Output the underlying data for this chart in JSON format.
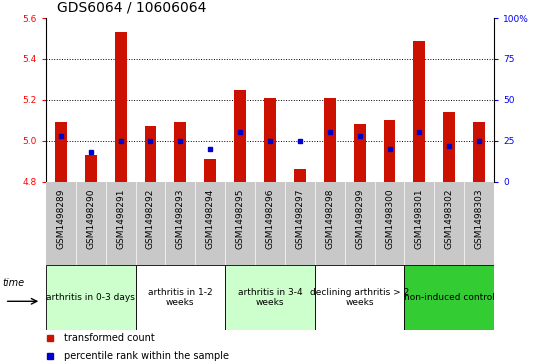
{
  "title": "GDS6064 / 10606064",
  "samples": [
    "GSM1498289",
    "GSM1498290",
    "GSM1498291",
    "GSM1498292",
    "GSM1498293",
    "GSM1498294",
    "GSM1498295",
    "GSM1498296",
    "GSM1498297",
    "GSM1498298",
    "GSM1498299",
    "GSM1498300",
    "GSM1498301",
    "GSM1498302",
    "GSM1498303"
  ],
  "transformed_count": [
    5.09,
    4.93,
    5.53,
    5.07,
    5.09,
    4.91,
    5.25,
    5.21,
    4.86,
    5.21,
    5.08,
    5.1,
    5.49,
    5.14,
    5.09
  ],
  "percentile_rank": [
    28,
    18,
    25,
    25,
    25,
    20,
    30,
    25,
    25,
    30,
    28,
    20,
    30,
    22,
    25
  ],
  "bar_bottom": 4.8,
  "ylim_left": [
    4.8,
    5.6
  ],
  "ylim_right": [
    0,
    100
  ],
  "yticks_left": [
    4.8,
    5.0,
    5.2,
    5.4,
    5.6
  ],
  "yticks_right": [
    0,
    25,
    50,
    75,
    100
  ],
  "bar_color": "#cc1100",
  "dot_color": "#0000cc",
  "groups": [
    {
      "label": "arthritis in 0-3 days",
      "start": 0,
      "end": 3,
      "color": "#ccffcc"
    },
    {
      "label": "arthritis in 1-2\nweeks",
      "start": 3,
      "end": 6,
      "color": "#ffffff"
    },
    {
      "label": "arthritis in 3-4\nweeks",
      "start": 6,
      "end": 9,
      "color": "#ccffcc"
    },
    {
      "label": "declining arthritis > 2\nweeks",
      "start": 9,
      "end": 12,
      "color": "#ffffff"
    },
    {
      "label": "non-induced control",
      "start": 12,
      "end": 15,
      "color": "#33cc33"
    }
  ],
  "grid_color": "black",
  "title_fontsize": 10,
  "tick_fontsize": 6.5,
  "group_fontsize": 6.5,
  "legend_fontsize": 7,
  "sample_bg_color": "#c8c8c8",
  "bar_width": 0.4
}
